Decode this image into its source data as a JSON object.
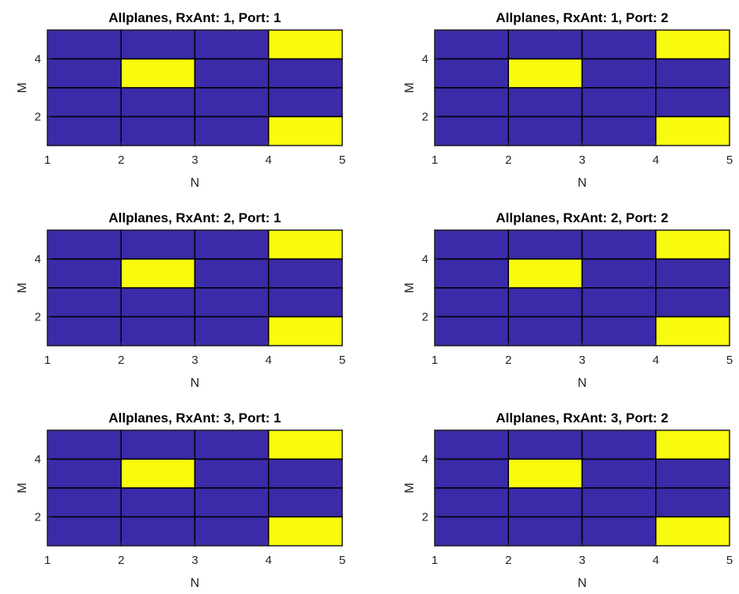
{
  "chart_data": [
    {
      "type": "heatmap",
      "title": "Allplanes, RxAnt: 1, Port: 1",
      "xlabel": "N",
      "ylabel": "M",
      "xlim": [
        1,
        5
      ],
      "ylim": [
        1,
        5
      ],
      "x_ticks": [
        "1",
        "2",
        "3",
        "4",
        "5"
      ],
      "y_ticks": [
        "2",
        "4"
      ],
      "values": [
        [
          0,
          0,
          0,
          1
        ],
        [
          0,
          1,
          0,
          0
        ],
        [
          0,
          0,
          0,
          0
        ],
        [
          0,
          0,
          0,
          1
        ]
      ]
    },
    {
      "type": "heatmap",
      "title": "Allplanes, RxAnt: 1, Port: 2",
      "xlabel": "N",
      "ylabel": "M",
      "xlim": [
        1,
        5
      ],
      "ylim": [
        1,
        5
      ],
      "x_ticks": [
        "1",
        "2",
        "3",
        "4",
        "5"
      ],
      "y_ticks": [
        "2",
        "4"
      ],
      "values": [
        [
          0,
          0,
          0,
          1
        ],
        [
          0,
          1,
          0,
          0
        ],
        [
          0,
          0,
          0,
          0
        ],
        [
          0,
          0,
          0,
          1
        ]
      ]
    },
    {
      "type": "heatmap",
      "title": "Allplanes, RxAnt: 2, Port: 1",
      "xlabel": "N",
      "ylabel": "M",
      "xlim": [
        1,
        5
      ],
      "ylim": [
        1,
        5
      ],
      "x_ticks": [
        "1",
        "2",
        "3",
        "4",
        "5"
      ],
      "y_ticks": [
        "2",
        "4"
      ],
      "values": [
        [
          0,
          0,
          0,
          1
        ],
        [
          0,
          1,
          0,
          0
        ],
        [
          0,
          0,
          0,
          0
        ],
        [
          0,
          0,
          0,
          1
        ]
      ]
    },
    {
      "type": "heatmap",
      "title": "Allplanes, RxAnt: 2, Port: 2",
      "xlabel": "N",
      "ylabel": "M",
      "xlim": [
        1,
        5
      ],
      "ylim": [
        1,
        5
      ],
      "x_ticks": [
        "1",
        "2",
        "3",
        "4",
        "5"
      ],
      "y_ticks": [
        "2",
        "4"
      ],
      "values": [
        [
          0,
          0,
          0,
          1
        ],
        [
          0,
          1,
          0,
          0
        ],
        [
          0,
          0,
          0,
          0
        ],
        [
          0,
          0,
          0,
          1
        ]
      ]
    },
    {
      "type": "heatmap",
      "title": "Allplanes, RxAnt: 3, Port: 1",
      "xlabel": "N",
      "ylabel": "M",
      "xlim": [
        1,
        5
      ],
      "ylim": [
        1,
        5
      ],
      "x_ticks": [
        "1",
        "2",
        "3",
        "4",
        "5"
      ],
      "y_ticks": [
        "2",
        "4"
      ],
      "values": [
        [
          0,
          0,
          0,
          1
        ],
        [
          0,
          1,
          0,
          0
        ],
        [
          0,
          0,
          0,
          0
        ],
        [
          0,
          0,
          0,
          1
        ]
      ]
    },
    {
      "type": "heatmap",
      "title": "Allplanes, RxAnt: 3, Port: 2",
      "xlabel": "N",
      "ylabel": "M",
      "xlim": [
        1,
        5
      ],
      "ylim": [
        1,
        5
      ],
      "x_ticks": [
        "1",
        "2",
        "3",
        "4",
        "5"
      ],
      "y_ticks": [
        "2",
        "4"
      ],
      "values": [
        [
          0,
          0,
          0,
          1
        ],
        [
          0,
          1,
          0,
          0
        ],
        [
          0,
          0,
          0,
          0
        ],
        [
          0,
          0,
          0,
          1
        ]
      ]
    }
  ],
  "colors": {
    "low": "#3b2ba8",
    "high": "#f9fb0e",
    "grid": "#000000",
    "axis": "#262626"
  }
}
